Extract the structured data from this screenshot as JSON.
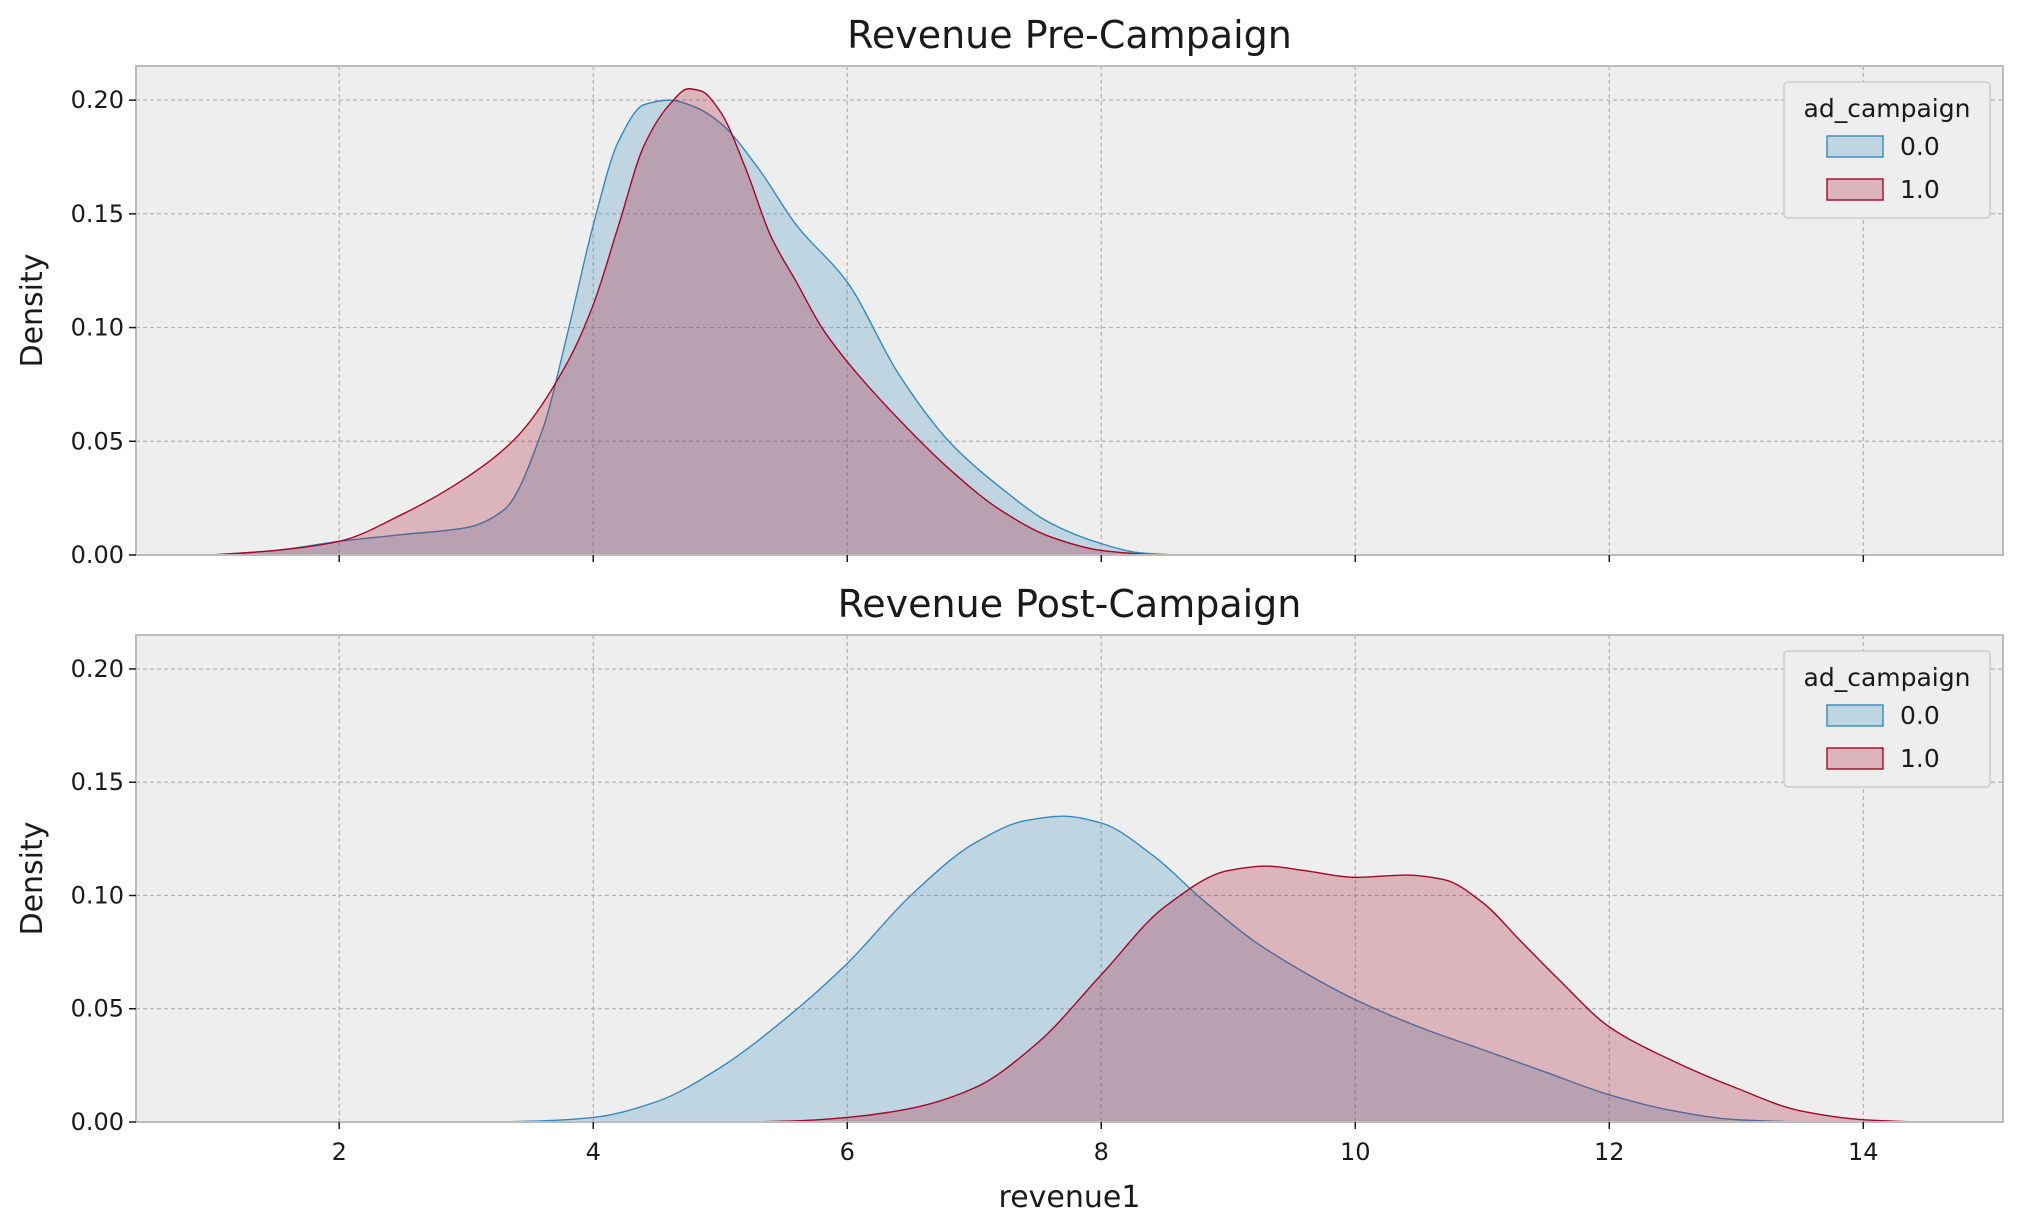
{
  "chart_data": [
    {
      "type": "area",
      "title": "Revenue Pre-Campaign",
      "xlabel": "",
      "ylabel": "Density",
      "xlim": [
        0.4,
        15.1
      ],
      "ylim": [
        0,
        0.215
      ],
      "xticks": [
        "2",
        "4",
        "6",
        "8",
        "10",
        "12",
        "14"
      ],
      "yticks": [
        "0.00",
        "0.05",
        "0.10",
        "0.15",
        "0.20"
      ],
      "grid": true,
      "legend": {
        "title": "ad_campaign",
        "position": "top-right",
        "entries": [
          "0.0",
          "1.0"
        ]
      },
      "series": [
        {
          "name": "0.0",
          "color": "#348ABD",
          "x": [
            1.0,
            1.5,
            2.0,
            2.5,
            3.0,
            3.3,
            3.6,
            3.8,
            4.0,
            4.2,
            4.4,
            4.6,
            4.8,
            5.0,
            5.3,
            5.6,
            6.0,
            6.4,
            6.8,
            7.2,
            7.6,
            8.0,
            8.3,
            8.6
          ],
          "y": [
            0.0,
            0.002,
            0.006,
            0.009,
            0.012,
            0.02,
            0.055,
            0.098,
            0.145,
            0.182,
            0.198,
            0.2,
            0.197,
            0.19,
            0.17,
            0.145,
            0.12,
            0.08,
            0.05,
            0.03,
            0.014,
            0.005,
            0.001,
            0.0
          ]
        },
        {
          "name": "1.0",
          "color": "#A60628",
          "x": [
            1.0,
            1.5,
            2.0,
            2.5,
            3.0,
            3.4,
            3.8,
            4.0,
            4.2,
            4.4,
            4.6,
            4.75,
            4.85,
            5.0,
            5.2,
            5.4,
            5.6,
            5.8,
            6.0,
            6.4,
            6.8,
            7.2,
            7.6,
            8.0,
            8.4
          ],
          "y": [
            0.0,
            0.002,
            0.006,
            0.018,
            0.034,
            0.052,
            0.085,
            0.11,
            0.145,
            0.18,
            0.198,
            0.205,
            0.204,
            0.195,
            0.17,
            0.14,
            0.12,
            0.1,
            0.085,
            0.06,
            0.038,
            0.02,
            0.008,
            0.002,
            0.0
          ]
        }
      ]
    },
    {
      "type": "area",
      "title": "Revenue Post-Campaign",
      "xlabel": "revenue1",
      "ylabel": "Density",
      "xlim": [
        0.4,
        15.1
      ],
      "ylim": [
        0,
        0.215
      ],
      "xticks": [
        "2",
        "4",
        "6",
        "8",
        "10",
        "12",
        "14"
      ],
      "yticks": [
        "0.00",
        "0.05",
        "0.10",
        "0.15",
        "0.20"
      ],
      "grid": true,
      "legend": {
        "title": "ad_campaign",
        "position": "top-right",
        "entries": [
          "0.0",
          "1.0"
        ]
      },
      "series": [
        {
          "name": "0.0",
          "color": "#348ABD",
          "x": [
            3.2,
            3.6,
            4.0,
            4.5,
            5.0,
            5.5,
            6.0,
            6.5,
            7.0,
            7.4,
            7.7,
            8.0,
            8.4,
            8.8,
            9.2,
            9.6,
            10.0,
            10.5,
            11.0,
            11.5,
            12.0,
            12.5,
            13.0,
            13.5
          ],
          "y": [
            0.0,
            0.0005,
            0.002,
            0.009,
            0.024,
            0.045,
            0.07,
            0.1,
            0.123,
            0.133,
            0.135,
            0.132,
            0.118,
            0.098,
            0.08,
            0.066,
            0.054,
            0.042,
            0.032,
            0.022,
            0.012,
            0.005,
            0.001,
            0.0
          ]
        },
        {
          "name": "1.0",
          "color": "#A60628",
          "x": [
            5.2,
            5.6,
            6.0,
            6.5,
            7.0,
            7.5,
            8.0,
            8.5,
            9.0,
            9.3,
            9.6,
            10.0,
            10.4,
            10.7,
            11.0,
            11.3,
            11.6,
            12.0,
            12.5,
            13.0,
            13.5,
            14.0,
            14.4
          ],
          "y": [
            0.0,
            0.0005,
            0.002,
            0.006,
            0.015,
            0.035,
            0.065,
            0.095,
            0.111,
            0.113,
            0.111,
            0.108,
            0.109,
            0.107,
            0.097,
            0.08,
            0.063,
            0.042,
            0.027,
            0.015,
            0.005,
            0.001,
            0.0
          ]
        }
      ]
    }
  ]
}
